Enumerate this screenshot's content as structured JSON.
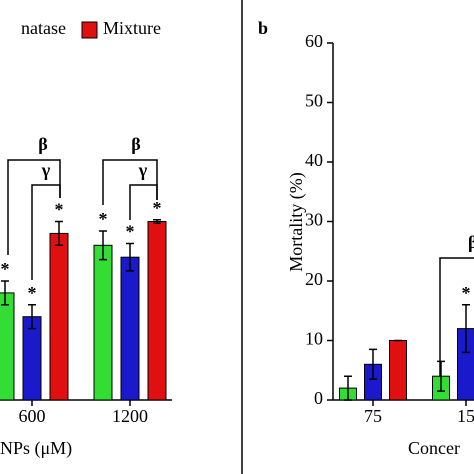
{
  "chart_data": [
    {
      "type": "bar",
      "x_label": "NPs (μM)",
      "categories": [
        "600",
        "1200"
      ],
      "ylim": [
        0,
        60
      ],
      "series": [
        {
          "color": "#33dd33",
          "values": [
            18,
            26
          ],
          "errors": [
            2,
            2.4
          ],
          "markers": [
            "*",
            "*"
          ]
        },
        {
          "name": "natase",
          "color": "#1a1acc",
          "values": [
            14,
            24
          ],
          "errors": [
            2,
            2.3
          ],
          "markers": [
            "*",
            "*"
          ]
        },
        {
          "name": "Mixture",
          "color": "#e01010",
          "values": [
            28,
            30
          ],
          "errors": [
            2,
            0.3
          ],
          "markers": [
            "*",
            "*"
          ]
        }
      ],
      "annotations": [
        "β",
        "γ",
        "β",
        "γ"
      ]
    },
    {
      "type": "bar",
      "title": "b",
      "y_label": "Mortality (%)",
      "x_label": "Concer",
      "categories": [
        "75",
        "15"
      ],
      "ylim": [
        0,
        60
      ],
      "yticks": [
        0,
        10,
        20,
        30,
        40,
        50,
        60
      ],
      "series": [
        {
          "color": "#33dd33",
          "values": [
            2,
            4
          ],
          "errors": [
            2,
            2.5
          ],
          "markers": [
            null,
            null
          ]
        },
        {
          "color": "#1a1acc",
          "values": [
            6,
            12
          ],
          "errors": [
            2.5,
            4
          ],
          "markers": [
            null,
            "*"
          ]
        },
        {
          "color": "#e01010",
          "values": [
            10,
            null
          ],
          "errors": [
            0,
            null
          ],
          "markers": [
            null,
            null
          ]
        }
      ],
      "annotations": [
        "β"
      ]
    }
  ]
}
